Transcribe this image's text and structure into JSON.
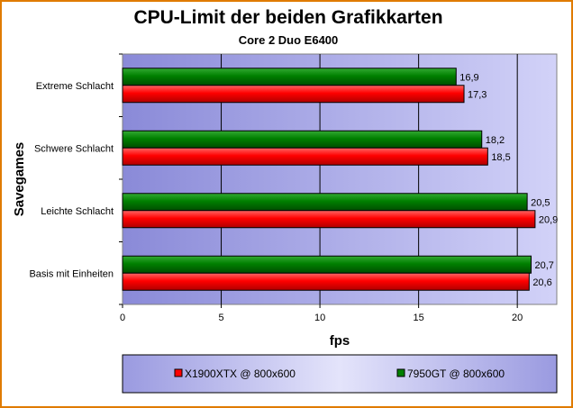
{
  "chart_data": {
    "type": "bar",
    "orientation": "horizontal",
    "title": "CPU-Limit der beiden Grafikkarten",
    "subtitle": "Core 2 Duo E6400",
    "xlabel": "fps",
    "ylabel": "Savegames",
    "categories": [
      "Extreme Schlacht",
      "Schwere Schlacht",
      "Leichte Schlacht",
      "Basis mit Einheiten"
    ],
    "series": [
      {
        "name": "X1900XTX @ 800x600",
        "values": [
          17.3,
          18.5,
          20.9,
          20.6
        ],
        "labels": [
          "17,3",
          "18,5",
          "20,9",
          "20,6"
        ],
        "color": "#ff0000"
      },
      {
        "name": "7950GT @ 800x600",
        "values": [
          16.9,
          18.2,
          20.5,
          20.7
        ],
        "labels": [
          "16,9",
          "18,2",
          "20,5",
          "20,7"
        ],
        "color": "#008000"
      }
    ],
    "xlim": [
      0,
      22
    ],
    "xticks": [
      0,
      5,
      10,
      15,
      20
    ],
    "xtick_labels": [
      "0",
      "5",
      "10",
      "15",
      "20"
    ],
    "grid": true,
    "legend_position": "bottom",
    "plot_background": "#a8a8e8",
    "frame_border_color": "#e07b00"
  }
}
